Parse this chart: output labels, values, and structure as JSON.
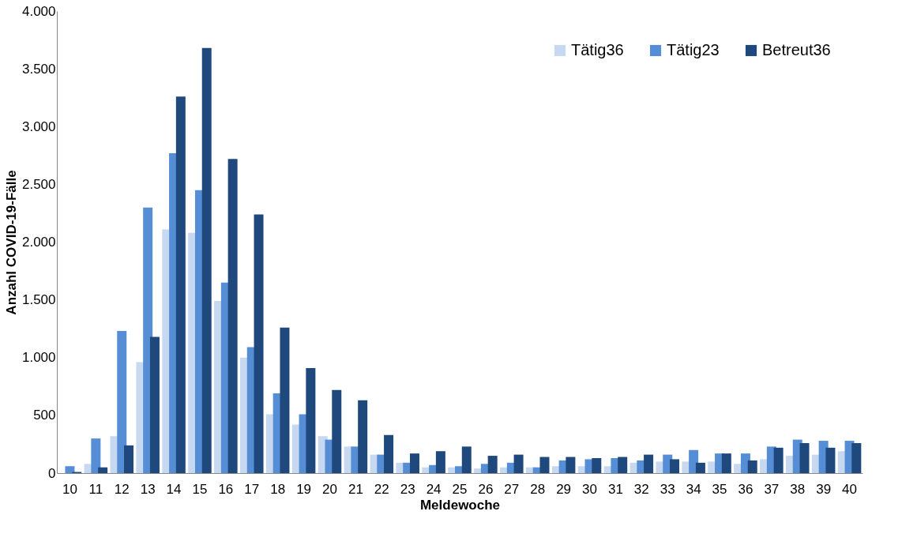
{
  "chart_data": {
    "type": "bar",
    "xlabel": "Meldewoche",
    "ylabel": "Anzahl COVID-19-Fälle",
    "categories": [
      "10",
      "11",
      "12",
      "13",
      "14",
      "15",
      "16",
      "17",
      "18",
      "19",
      "20",
      "21",
      "22",
      "23",
      "24",
      "25",
      "26",
      "27",
      "28",
      "29",
      "30",
      "31",
      "32",
      "33",
      "34",
      "35",
      "36",
      "37",
      "38",
      "39",
      "40"
    ],
    "series": [
      {
        "name": "Tätig36",
        "color": "#c6d9f1",
        "values": [
          null,
          80,
          320,
          960,
          2110,
          2080,
          1490,
          1000,
          510,
          420,
          320,
          230,
          160,
          90,
          50,
          50,
          40,
          50,
          50,
          60,
          60,
          60,
          90,
          100,
          100,
          100,
          80,
          120,
          150,
          160,
          190
        ]
      },
      {
        "name": "Tätig23",
        "color": "#558ed5",
        "values": [
          60,
          300,
          1230,
          2300,
          2770,
          2450,
          1650,
          1090,
          690,
          510,
          290,
          230,
          160,
          90,
          70,
          60,
          80,
          90,
          50,
          110,
          120,
          130,
          110,
          160,
          200,
          170,
          170,
          230,
          290,
          280,
          280
        ]
      },
      {
        "name": "Betreut36",
        "color": "#1f497d",
        "values": [
          10,
          50,
          240,
          1180,
          3260,
          3680,
          2720,
          2240,
          1260,
          910,
          720,
          630,
          330,
          170,
          190,
          230,
          150,
          160,
          140,
          140,
          130,
          140,
          160,
          120,
          90,
          170,
          110,
          220,
          260,
          220,
          260
        ]
      }
    ],
    "ylim": [
      0,
      4000
    ],
    "yticks": [
      {
        "value": 0,
        "label": "0"
      },
      {
        "value": 500,
        "label": "500"
      },
      {
        "value": 1000,
        "label": "1.000"
      },
      {
        "value": 1500,
        "label": "1.500"
      },
      {
        "value": 2000,
        "label": "2.000"
      },
      {
        "value": 2500,
        "label": "2.500"
      },
      {
        "value": 3000,
        "label": "3.000"
      },
      {
        "value": 3500,
        "label": "3.500"
      },
      {
        "value": 4000,
        "label": "4.000"
      }
    ],
    "grid": false,
    "legend": "top right"
  }
}
